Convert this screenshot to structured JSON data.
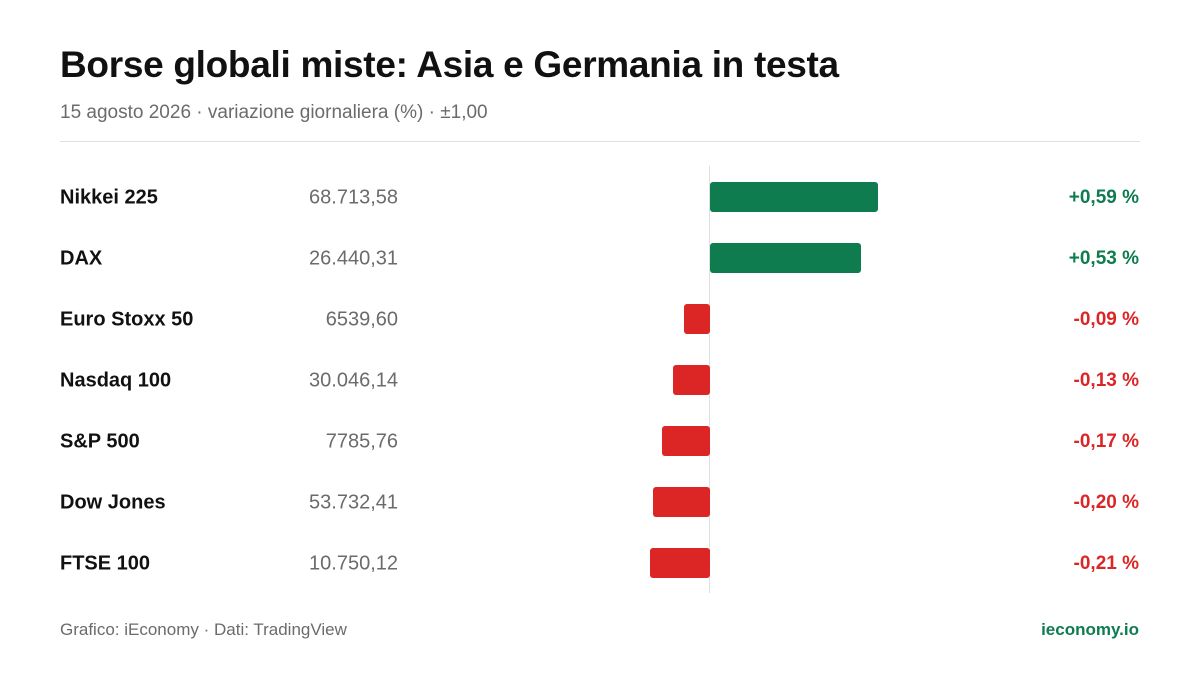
{
  "title": "Borse globali miste: Asia e Germania in testa",
  "subtitle": "15 agosto 2026 · variazione giornaliera (%) · ±1,00",
  "footer": {
    "source": "Grafico: iEconomy · Dati: TradingView",
    "brand": "ieconomy.io"
  },
  "colors": {
    "positive": "#0e7c4f",
    "negative": "#dc2626",
    "brand": "#0e7c4f"
  },
  "chart_data": {
    "type": "bar",
    "orientation": "horizontal",
    "xlim": [
      -1.0,
      1.0
    ],
    "rows": [
      {
        "name": "Nikkei 225",
        "price": "68.713,58",
        "value": 0.59,
        "change": "+0,59 %"
      },
      {
        "name": "DAX",
        "price": "26.440,31",
        "value": 0.53,
        "change": "+0,53 %"
      },
      {
        "name": "Euro Stoxx 50",
        "price": "6539,60",
        "value": -0.09,
        "change": "-0,09 %"
      },
      {
        "name": "Nasdaq 100",
        "price": "30.046,14",
        "value": -0.13,
        "change": "-0,13 %"
      },
      {
        "name": "S&P 500",
        "price": "7785,76",
        "value": -0.17,
        "change": "-0,17 %"
      },
      {
        "name": "Dow Jones",
        "price": "53.732,41",
        "value": -0.2,
        "change": "-0,20 %"
      },
      {
        "name": "FTSE 100",
        "price": "10.750,12",
        "value": -0.21,
        "change": "-0,21 %"
      }
    ]
  }
}
